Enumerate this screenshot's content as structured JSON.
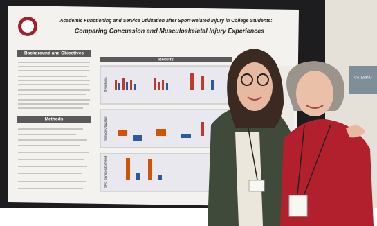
{
  "poster": {
    "title_line1": "Academic Functioning and Service Utilization after Sport-Related Injury in College Students:",
    "title_line2": "Comparing Concussion and Musculoskeletal Injury Experiences",
    "sections": [
      "Background and Objectives",
      "Methods",
      "Results"
    ],
    "panel_labels": [
      "Symptoms",
      "Service Utilization",
      "SRC Services by Need"
    ]
  },
  "sign": {
    "text": "CATERING"
  }
}
